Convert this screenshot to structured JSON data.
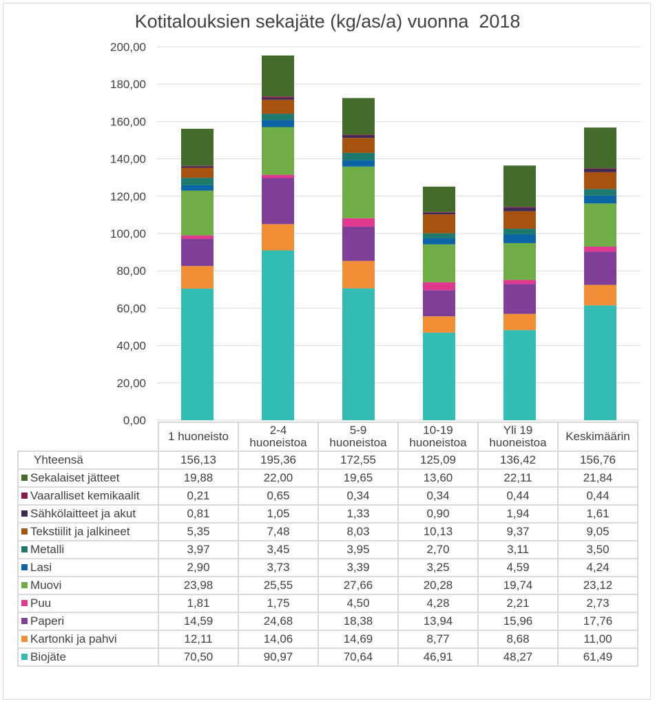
{
  "chart_data": {
    "type": "bar",
    "stacked": true,
    "title": "Kotitalouksien sekajäte (kg/as/a) vuonna  2018",
    "xlabel": "",
    "ylabel": "",
    "ylim": [
      0,
      200
    ],
    "yticks": [
      "0,00",
      "20,00",
      "40,00",
      "60,00",
      "80,00",
      "100,00",
      "120,00",
      "140,00",
      "160,00",
      "180,00",
      "200,00"
    ],
    "grid": true,
    "legend": "data-table",
    "categories": [
      [
        "1 huoneisto"
      ],
      [
        "2-4",
        "huoneistoa"
      ],
      [
        "5-9",
        "huoneistoa"
      ],
      [
        "10-19",
        "huoneistoa"
      ],
      [
        "Yli 19",
        "huoneistoa"
      ],
      [
        "Keskimäärin"
      ]
    ],
    "total": {
      "name": "Yhteensä",
      "labels": [
        "156,13",
        "195,36",
        "172,55",
        "125,09",
        "136,42",
        "156,76"
      ]
    },
    "series": [
      {
        "name": "Biojäte",
        "color": "#33bcb4",
        "values": [
          70.5,
          90.97,
          70.64,
          46.91,
          48.27,
          61.49
        ]
      },
      {
        "name": "Kartonki ja pahvi",
        "color": "#f28e36",
        "values": [
          12.11,
          14.06,
          14.69,
          8.77,
          8.68,
          11.0
        ]
      },
      {
        "name": "Paperi",
        "color": "#7f3f98",
        "values": [
          14.59,
          24.68,
          18.38,
          13.94,
          15.96,
          17.76
        ]
      },
      {
        "name": "Puu",
        "color": "#e0388e",
        "values": [
          1.81,
          1.75,
          4.5,
          4.28,
          2.21,
          2.73
        ]
      },
      {
        "name": "Muovi",
        "color": "#70ad47",
        "values": [
          23.98,
          25.55,
          27.66,
          20.28,
          19.74,
          23.12
        ]
      },
      {
        "name": "Lasi",
        "color": "#0b64a6",
        "values": [
          2.9,
          3.73,
          3.39,
          3.25,
          4.59,
          4.24
        ]
      },
      {
        "name": "Metalli",
        "color": "#1f7a6e",
        "values": [
          3.97,
          3.45,
          3.95,
          2.7,
          3.11,
          3.5
        ]
      },
      {
        "name": "Tekstiilit ja jalkineet",
        "color": "#a8520f",
        "values": [
          5.35,
          7.48,
          8.03,
          10.13,
          9.37,
          9.05
        ]
      },
      {
        "name": "Sähkölaitteet ja akut",
        "color": "#3f2a56",
        "values": [
          0.81,
          1.05,
          1.33,
          0.9,
          1.94,
          1.61
        ]
      },
      {
        "name": "Vaaralliset kemikaalit",
        "color": "#8a1a4a",
        "values": [
          0.21,
          0.65,
          0.34,
          0.34,
          0.44,
          0.44
        ]
      },
      {
        "name": "Sekalaiset jätteet",
        "color": "#426b2c",
        "values": [
          19.88,
          22.0,
          19.65,
          13.6,
          22.11,
          21.84
        ]
      }
    ],
    "table_labels": [
      [
        "19,88",
        "22,00",
        "19,65",
        "13,60",
        "22,11",
        "21,84"
      ],
      [
        "0,21",
        "0,65",
        "0,34",
        "0,34",
        "0,44",
        "0,44"
      ],
      [
        "0,81",
        "1,05",
        "1,33",
        "0,90",
        "1,94",
        "1,61"
      ],
      [
        "5,35",
        "7,48",
        "8,03",
        "10,13",
        "9,37",
        "9,05"
      ],
      [
        "3,97",
        "3,45",
        "3,95",
        "2,70",
        "3,11",
        "3,50"
      ],
      [
        "2,90",
        "3,73",
        "3,39",
        "3,25",
        "4,59",
        "4,24"
      ],
      [
        "23,98",
        "25,55",
        "27,66",
        "20,28",
        "19,74",
        "23,12"
      ],
      [
        "1,81",
        "1,75",
        "4,50",
        "4,28",
        "2,21",
        "2,73"
      ],
      [
        "14,59",
        "24,68",
        "18,38",
        "13,94",
        "15,96",
        "17,76"
      ],
      [
        "12,11",
        "14,06",
        "14,69",
        "8,77",
        "8,68",
        "11,00"
      ],
      [
        "70,50",
        "90,97",
        "70,64",
        "46,91",
        "48,27",
        "61,49"
      ]
    ]
  }
}
